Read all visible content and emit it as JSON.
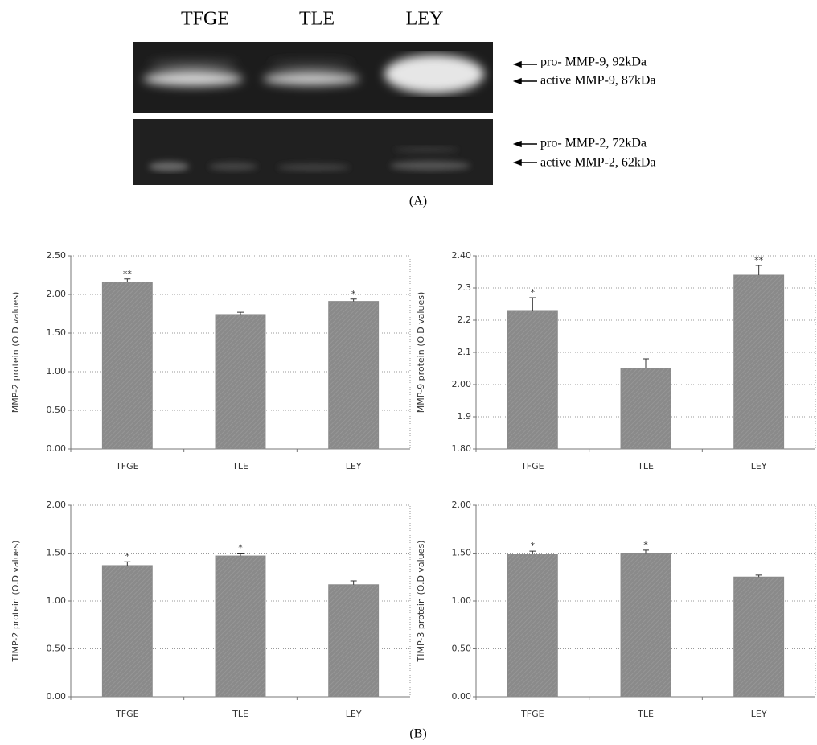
{
  "gel": {
    "lanes": [
      "TFGE",
      "TLE",
      "LEY"
    ],
    "labels": [
      "pro- MMP-9, 92kDa",
      "active MMP-9, 87kDa",
      "pro- MMP-2, 72kDa",
      "active MMP-2, 62kDa"
    ],
    "panel": "(A)"
  },
  "panel_b": "(B)",
  "chart_data": [
    {
      "type": "bar",
      "y_label": "MMP-2  protein  (O.D values)",
      "categories": [
        "TFGE",
        "TLE",
        "LEY"
      ],
      "values": [
        2.16,
        1.74,
        1.91
      ],
      "errors": [
        0.04,
        0.03,
        0.03
      ],
      "annotations": [
        "**",
        null,
        "*"
      ],
      "color": "#8a8a8a",
      "ylim": [
        0,
        2.5
      ],
      "grid": true,
      "yticks": [
        {
          "value": 0,
          "label": "0.00"
        },
        {
          "value": 0.5,
          "label": "0.50"
        },
        {
          "value": 1,
          "label": "1.00"
        },
        {
          "value": 1.5,
          "label": "1.50"
        },
        {
          "value": 2,
          "label": "2.00"
        },
        {
          "value": 2.5,
          "label": "2.50"
        }
      ]
    },
    {
      "type": "bar",
      "y_label": "MMP-9 protein (O.D values)",
      "categories": [
        "TFGE",
        "TLE",
        "LEY"
      ],
      "values": [
        2.23,
        2.05,
        2.34
      ],
      "errors": [
        0.04,
        0.03,
        0.03
      ],
      "annotations": [
        "*",
        null,
        "**"
      ],
      "color": "#8a8a8a",
      "ylim": [
        1.8,
        2.4
      ],
      "grid": true,
      "yticks": [
        {
          "value": 1.8,
          "label": "1.80"
        },
        1.9,
        {
          "value": 2,
          "label": "2.00"
        },
        2.1,
        2.2,
        2.3,
        {
          "value": 2.4,
          "label": "2.40"
        }
      ]
    },
    {
      "type": "bar",
      "y_label": "TIMP-2 protein (O.D values)",
      "categories": [
        "TFGE",
        "TLE",
        "LEY"
      ],
      "values": [
        1.37,
        1.47,
        1.17
      ],
      "errors": [
        0.04,
        0.03,
        0.04
      ],
      "annotations": [
        "*",
        "*",
        null
      ],
      "color": "#8a8a8a",
      "ylim": [
        0,
        2
      ],
      "grid": true,
      "yticks": [
        {
          "value": 0,
          "label": "0.00"
        },
        {
          "value": 0.5,
          "label": "0.50"
        },
        {
          "value": 1,
          "label": "1.00"
        },
        {
          "value": 1.5,
          "label": "1.50"
        },
        {
          "value": 2,
          "label": "2.00"
        }
      ]
    },
    {
      "type": "bar",
      "y_label": "TIMP-3 protein (O.D values)",
      "categories": [
        "TFGE",
        "TLE",
        "LEY"
      ],
      "values": [
        1.49,
        1.5,
        1.25
      ],
      "errors": [
        0.03,
        0.03,
        0.02
      ],
      "annotations": [
        "*",
        "*",
        null
      ],
      "color": "#8a8a8a",
      "ylim": [
        0,
        2
      ],
      "grid": true,
      "yticks": [
        {
          "value": 0,
          "label": "0.00"
        },
        {
          "value": 0.5,
          "label": "0.50"
        },
        {
          "value": 1,
          "label": "1.00"
        },
        {
          "value": 1.5,
          "label": "1.50"
        },
        {
          "value": 2,
          "label": "2.00"
        }
      ]
    }
  ]
}
